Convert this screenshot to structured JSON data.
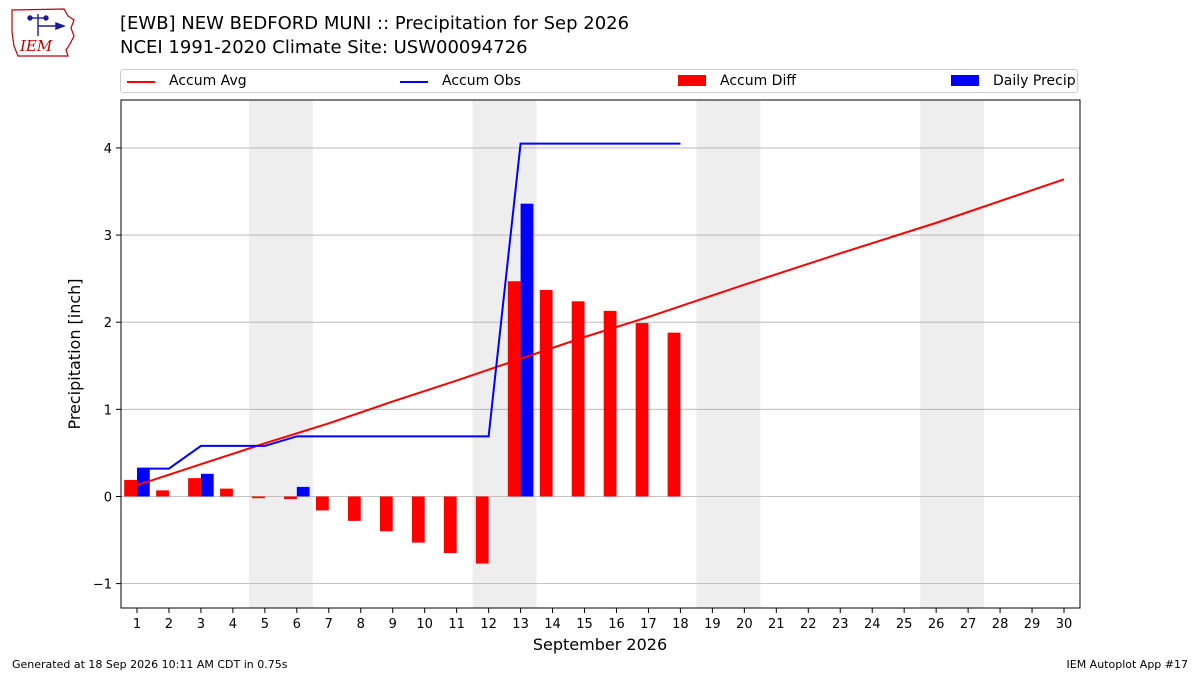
{
  "header": {
    "logo_text": "IEM",
    "title_line1": "[EWB] NEW BEDFORD MUNI :: Precipitation for Sep 2026",
    "title_line2": "NCEI 1991-2020 Climate Site: USW00094726"
  },
  "footer": {
    "left": "Generated at 18 Sep 2026 10:11 AM CDT in 0.75s",
    "right": "IEM Autoplot App #17"
  },
  "colors": {
    "accum_avg": "#ff0000",
    "accum_obs": "#0000ff",
    "accum_diff": "#ff0000",
    "daily_precip": "#0000ff",
    "weekend_shade": "#eeeeee",
    "grid": "#b0b0b0"
  },
  "chart_data": {
    "type": "bar",
    "xlabel": "September 2026",
    "ylabel": "Precipitation [inch]",
    "x": [
      1,
      2,
      3,
      4,
      5,
      6,
      7,
      8,
      9,
      10,
      11,
      12,
      13,
      14,
      15,
      16,
      17,
      18,
      19,
      20,
      21,
      22,
      23,
      24,
      25,
      26,
      27,
      28,
      29,
      30
    ],
    "xlim": [
      0.5,
      30.5
    ],
    "ylim": [
      -1.28,
      4.55
    ],
    "yticks": [
      -1,
      0,
      1,
      2,
      3,
      4
    ],
    "ytick_labels": [
      "−1",
      "0",
      "1",
      "2",
      "3",
      "4"
    ],
    "grid": "horizontal",
    "legend_position": "top",
    "weekend_shading": [
      [
        5,
        6
      ],
      [
        12,
        13
      ],
      [
        19,
        20
      ],
      [
        26,
        27
      ]
    ],
    "series": [
      {
        "name": "Accum Avg",
        "kind": "line",
        "x": [
          1,
          3,
          5,
          7,
          9,
          11,
          13,
          15,
          17,
          20,
          23,
          26,
          30
        ],
        "values": [
          0.13,
          0.37,
          0.61,
          0.84,
          1.09,
          1.33,
          1.58,
          1.83,
          2.06,
          2.43,
          2.79,
          3.14,
          3.64
        ]
      },
      {
        "name": "Accum Obs",
        "kind": "line",
        "x": [
          1,
          2,
          3,
          4,
          5,
          6,
          7,
          8,
          9,
          10,
          11,
          12,
          13,
          14,
          15,
          16,
          17,
          18
        ],
        "values": [
          0.32,
          0.32,
          0.58,
          0.58,
          0.58,
          0.69,
          0.69,
          0.69,
          0.69,
          0.69,
          0.69,
          0.69,
          4.05,
          4.05,
          4.05,
          4.05,
          4.05,
          4.05
        ]
      },
      {
        "name": "Accum Diff",
        "kind": "bar",
        "x": [
          1,
          2,
          3,
          4,
          5,
          6,
          7,
          8,
          9,
          10,
          11,
          12,
          13,
          14,
          15,
          16,
          17,
          18
        ],
        "values": [
          0.19,
          0.07,
          0.21,
          0.09,
          -0.02,
          -0.03,
          -0.16,
          -0.28,
          -0.4,
          -0.53,
          -0.65,
          -0.77,
          2.47,
          2.37,
          2.24,
          2.13,
          1.99,
          1.88
        ]
      },
      {
        "name": "Daily Precip",
        "kind": "bar",
        "x": [
          1,
          3,
          6,
          13
        ],
        "values": [
          0.32,
          0.26,
          0.11,
          3.36
        ]
      }
    ]
  }
}
